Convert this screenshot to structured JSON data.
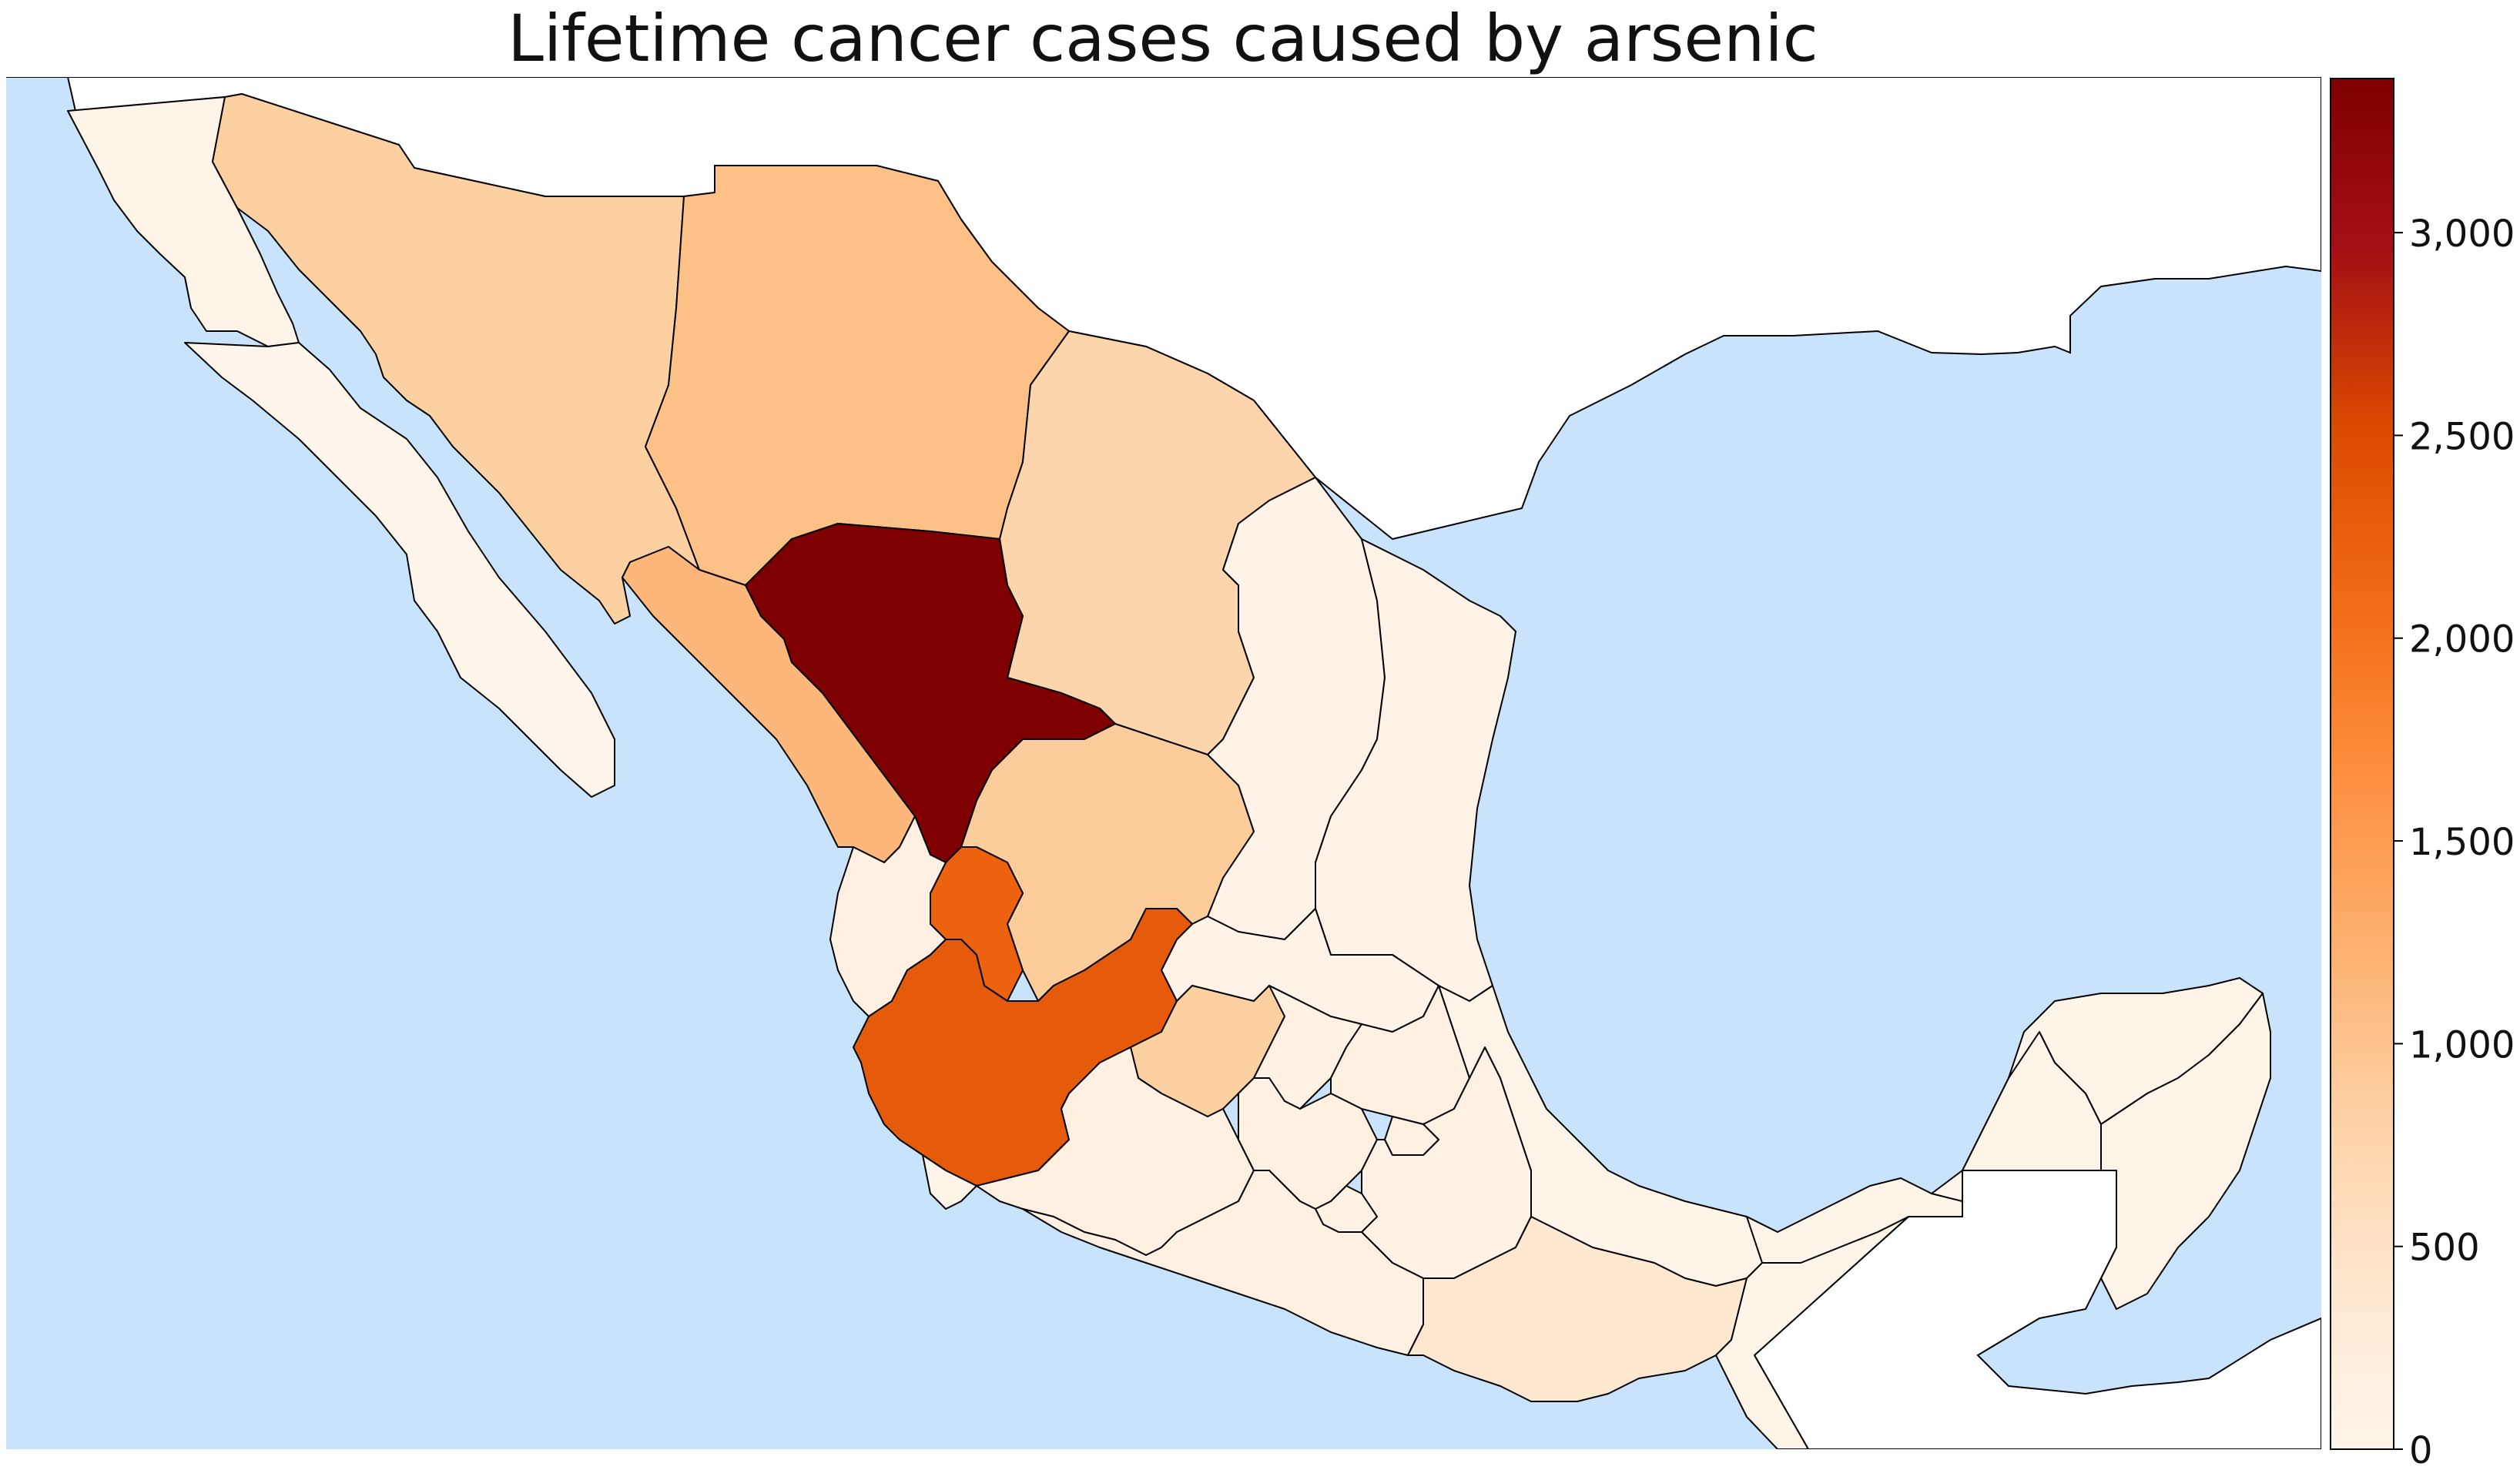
{
  "title": "Lifetime cancer cases caused by arsenic",
  "colors": {
    "ocean": "#c9e3fd",
    "land_outside": "#ffffff",
    "border": "#000000",
    "colormap": [
      "#fff5eb",
      "#fee6ce",
      "#fdd0a2",
      "#fdae6b",
      "#fd8d3c",
      "#f16913",
      "#d94801",
      "#a50f15",
      "#7f0000"
    ]
  },
  "colorbar": {
    "min": 0,
    "max": 3380,
    "ticks": [
      {
        "value": 0,
        "label": "0"
      },
      {
        "value": 500,
        "label": "500"
      },
      {
        "value": 1000,
        "label": "1,000"
      },
      {
        "value": 1500,
        "label": "1,500"
      },
      {
        "value": 2000,
        "label": "2,000"
      },
      {
        "value": 2500,
        "label": "2,500"
      },
      {
        "value": 3000,
        "label": "3,000"
      }
    ]
  },
  "regions": [
    {
      "name": "Baja California",
      "value": 40
    },
    {
      "name": "Baja California Sur",
      "value": 10
    },
    {
      "name": "Sonora",
      "value": 850
    },
    {
      "name": "Chihuahua",
      "value": 1050
    },
    {
      "name": "Coahuila",
      "value": 750
    },
    {
      "name": "Nuevo León",
      "value": 60
    },
    {
      "name": "Tamaulipas",
      "value": 50
    },
    {
      "name": "Sinaloa",
      "value": 1150
    },
    {
      "name": "Durango",
      "value": 3380
    },
    {
      "name": "Zacatecas",
      "value": 900
    },
    {
      "name": "San Luis Potosí",
      "value": 60
    },
    {
      "name": "Aguascalientes",
      "value": 2200
    },
    {
      "name": "Nayarit",
      "value": 150
    },
    {
      "name": "Jalisco",
      "value": 2300
    },
    {
      "name": "Guanajuato",
      "value": 850
    },
    {
      "name": "Querétaro",
      "value": 120
    },
    {
      "name": "Hidalgo",
      "value": 150
    },
    {
      "name": "Colima",
      "value": 40
    },
    {
      "name": "Michoacán",
      "value": 150
    },
    {
      "name": "México",
      "value": 150
    },
    {
      "name": "Puebla",
      "value": 100
    },
    {
      "name": "Veracruz",
      "value": 40
    },
    {
      "name": "Tlaxcala",
      "value": 150
    },
    {
      "name": "Morelos",
      "value": 100
    },
    {
      "name": "Guerrero",
      "value": 150
    },
    {
      "name": "Oaxaca",
      "value": 380
    },
    {
      "name": "Chiapas",
      "value": 40
    },
    {
      "name": "Tabasco",
      "value": 40
    },
    {
      "name": "Campeche",
      "value": 40
    },
    {
      "name": "Yucatán",
      "value": 40
    },
    {
      "name": "Quintana Roo",
      "value": 40
    }
  ]
}
